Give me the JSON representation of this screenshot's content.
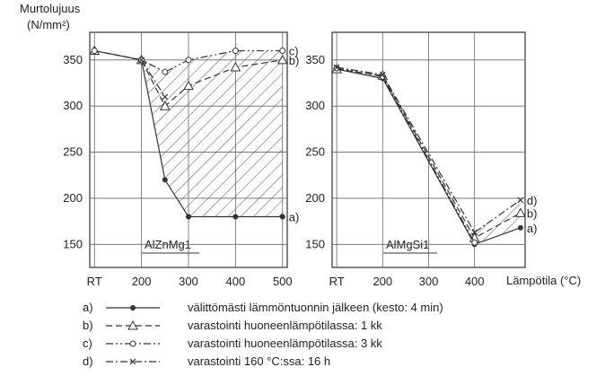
{
  "chart_data": [
    {
      "type": "line",
      "y_axis_title_line1": "Murtolujuus",
      "y_axis_title_line2": "(N/mm²)",
      "box_label": "AlZnMg1",
      "categories": [
        "RT",
        "200",
        "300",
        "400",
        "500"
      ],
      "x_positions": [
        100,
        200,
        300,
        400,
        500
      ],
      "yticks": [
        150,
        200,
        250,
        300,
        350
      ],
      "ylim": [
        125,
        380
      ],
      "xlim": [
        90,
        510
      ],
      "grid": true,
      "series": [
        {
          "key": "a)",
          "marker": "dot",
          "style": "solid",
          "x": [
            100,
            200,
            250,
            300,
            400,
            500
          ],
          "y": [
            360,
            350,
            220,
            180,
            180,
            180
          ]
        },
        {
          "key": "b)",
          "marker": "triangle",
          "style": "dashed",
          "x": [
            100,
            200,
            250,
            300,
            400,
            500
          ],
          "y": [
            360,
            350,
            300,
            322,
            342,
            350
          ]
        },
        {
          "key": "c)",
          "marker": "circle",
          "style": "dashdotdot",
          "x": [
            100,
            200,
            250,
            300,
            400,
            500
          ],
          "y": [
            360,
            350,
            337,
            350,
            360,
            360
          ]
        },
        {
          "key": "d)",
          "marker": "x",
          "style": "dashdot",
          "x": [
            200,
            250
          ],
          "y": [
            350,
            310
          ]
        }
      ],
      "end_labels": [
        "a)",
        "b)",
        "c)"
      ]
    },
    {
      "type": "line",
      "box_label": "AlMgSi1",
      "categories": [
        "RT",
        "200",
        "300",
        "400"
      ],
      "x_positions": [
        100,
        200,
        300,
        400
      ],
      "yticks": [
        150,
        200,
        250,
        300,
        350
      ],
      "ylim": [
        125,
        380
      ],
      "xlim": [
        90,
        510
      ],
      "xlabel": "Lämpötila (°C)",
      "grid": true,
      "series": [
        {
          "key": "a)",
          "marker": "dot",
          "style": "solid",
          "x": [
            100,
            200,
            400,
            500
          ],
          "y": [
            340,
            330,
            150,
            168
          ]
        },
        {
          "key": "b)",
          "marker": "triangle",
          "style": "dashed",
          "x": [
            100,
            200,
            400,
            500
          ],
          "y": [
            340,
            333,
            157,
            184
          ]
        },
        {
          "key": "c)",
          "marker": "circle",
          "style": "dashdotdot",
          "x": [
            100,
            200,
            400
          ],
          "y": [
            341,
            332,
            152
          ]
        },
        {
          "key": "d)",
          "marker": "x",
          "style": "dashdot",
          "x": [
            100,
            200,
            400,
            500
          ],
          "y": [
            342,
            334,
            163,
            198
          ]
        }
      ],
      "end_labels": [
        "a)",
        "b)",
        "d)"
      ]
    }
  ],
  "legend": [
    {
      "key": "a)",
      "marker": "dot",
      "style": "solid",
      "text": "välittömästi lämmöntuonnin jälkeen (kesto: 4 min)"
    },
    {
      "key": "b)",
      "marker": "triangle",
      "style": "dashed",
      "text": "varastointi huoneenlämpötilassa: 1 kk"
    },
    {
      "key": "c)",
      "marker": "circle",
      "style": "dashdotdot",
      "text": "varastointi huoneenlämpötilassa: 3 kk"
    },
    {
      "key": "d)",
      "marker": "x",
      "style": "dashdot",
      "text": "varastointi 160 °C:ssa: 16 h"
    }
  ]
}
